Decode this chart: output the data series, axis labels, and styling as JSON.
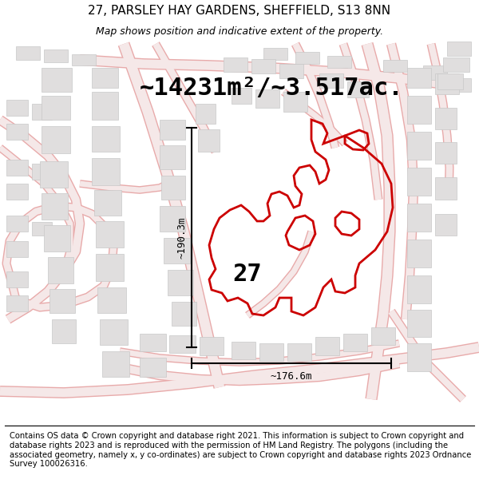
{
  "title_line1": "27, PARSLEY HAY GARDENS, SHEFFIELD, S13 8NN",
  "title_line2": "Map shows position and indicative extent of the property.",
  "area_text": "~14231m²/~3.517ac.",
  "label_27": "27",
  "dim_vertical": "~190.3m",
  "dim_horizontal": "~176.6m",
  "footer_text": "Contains OS data © Crown copyright and database right 2021. This information is subject to Crown copyright and database rights 2023 and is reproduced with the permission of HM Land Registry. The polygons (including the associated geometry, namely x, y co-ordinates) are subject to Crown copyright and database rights 2023 Ordnance Survey 100026316.",
  "map_bg": "#ffffff",
  "road_fill": "#f5e8e8",
  "road_line": "#e8aaaa",
  "building_fill": "#e0dede",
  "building_line": "#c8c8c8",
  "polygon_color": "#cc0000",
  "text_color_light": "#d08080",
  "fig_width": 6.0,
  "fig_height": 6.25,
  "dpi": 100,
  "title_fontsize": 11,
  "subtitle_fontsize": 9,
  "area_fontsize": 22,
  "label_fontsize": 22,
  "dim_fontsize": 9,
  "footer_fontsize": 7.2
}
